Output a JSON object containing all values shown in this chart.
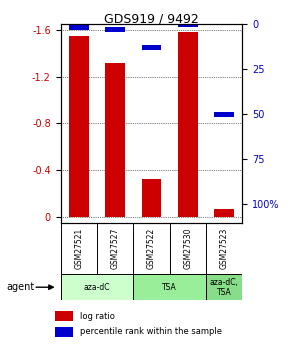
{
  "title": "GDS919 / 9492",
  "categories": [
    "GSM27521",
    "GSM27527",
    "GSM27522",
    "GSM27530",
    "GSM27523"
  ],
  "log_ratios": [
    -1.55,
    -1.32,
    -0.32,
    -1.58,
    -0.07
  ],
  "percentile_ranks": [
    2,
    3,
    13,
    0,
    50
  ],
  "agent_groups": [
    {
      "label": "aza-dC",
      "indices": [
        0,
        1
      ],
      "color": "#ccffcc"
    },
    {
      "label": "TSA",
      "indices": [
        2,
        3
      ],
      "color": "#99ee99"
    },
    {
      "label": "aza-dC,\nTSA",
      "indices": [
        4
      ],
      "color": "#88dd88"
    }
  ],
  "bar_color": "#cc0000",
  "percentile_color": "#0000cc",
  "ylim_left": [
    -1.65,
    0.05
  ],
  "ylim_right": [
    0,
    110.25
  ],
  "yticks_left": [
    0,
    -0.4,
    -0.8,
    -1.2,
    -1.6
  ],
  "yticks_right": [
    0,
    25,
    50,
    75,
    100
  ],
  "bar_width": 0.55,
  "background_color": "#ffffff",
  "agent_label": "agent",
  "legend_items": [
    {
      "color": "#cc0000",
      "label": "log ratio"
    },
    {
      "color": "#0000cc",
      "label": "percentile rank within the sample"
    }
  ]
}
